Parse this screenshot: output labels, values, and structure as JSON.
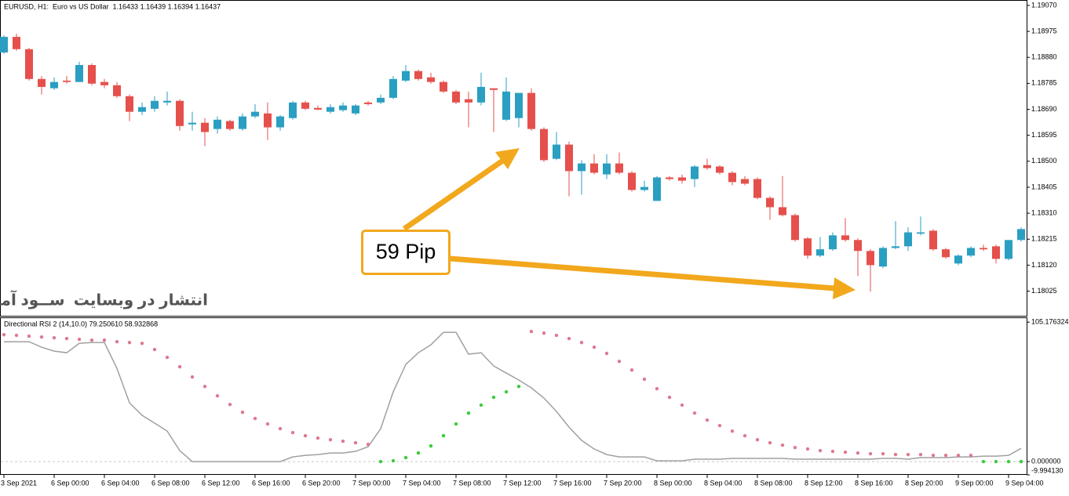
{
  "chart_data": [
    {
      "type": "candlestick",
      "title": "EURUSD, H1:  Euro vs US Dollar  1.16433 1.16439 1.16394 1.16437",
      "annotations": [
        "59 Pip",
        "انتشار در وبسایت  ســود آمــوز"
      ],
      "up_color": "#2a9fc2",
      "down_color": "#e5504c",
      "ylim": [
        1.17932,
        1.19087
      ],
      "yticks": [
        {
          "value": 1.1907,
          "label": "1.19070"
        },
        1.18975,
        {
          "value": 1.1888,
          "label": "1.18880"
        },
        1.18785,
        {
          "value": 1.1869,
          "label": "1.18690"
        },
        1.18595,
        {
          "value": 1.185,
          "label": "1.18500"
        },
        1.18405,
        {
          "value": 1.1831,
          "label": "1.18310"
        },
        1.18215,
        {
          "value": 1.1812,
          "label": "1.18120"
        },
        1.18025
      ],
      "open": [
        1.18898,
        1.18955,
        1.1891,
        1.18801,
        1.18767,
        1.18795,
        1.1879,
        1.18852,
        1.1879,
        1.18778,
        1.18738,
        1.18681,
        1.18692,
        1.18715,
        1.18721,
        1.18635,
        1.18641,
        1.18618,
        1.18647,
        1.18618,
        1.18664,
        1.18675,
        1.18624,
        1.18658,
        1.18715,
        1.18695,
        1.18681,
        1.18687,
        1.18675,
        1.18715,
        1.18715,
        1.18732,
        1.18795,
        1.1883,
        1.18807,
        1.1879,
        1.18755,
        1.18727,
        1.18715,
        1.18767,
        1.18652,
        1.18658,
        1.1875,
        1.18618,
        1.18509,
        1.18561,
        1.18464,
        1.18492,
        1.18452,
        1.18492,
        1.18458,
        1.18395,
        1.18355,
        1.18441,
        1.18441,
        1.18435,
        1.18486,
        1.18481,
        1.18458,
        1.18435,
        1.18435,
        1.18366,
        1.18332,
        1.18303,
        1.18218,
        1.18155,
        1.18178,
        1.18229,
        1.18212,
        1.18172,
        1.18115,
        1.18183,
        1.18189,
        1.18235,
        1.18246,
        1.18178,
        1.18126,
        1.18155,
        1.18183,
        1.18189,
        1.18143,
        1.18212
      ],
      "high": [
        1.18961,
        1.18967,
        1.18915,
        1.18812,
        1.18807,
        1.18812,
        1.18864,
        1.18858,
        1.18801,
        1.1879,
        1.18744,
        1.18715,
        1.18738,
        1.18755,
        1.18727,
        1.18681,
        1.18658,
        1.18664,
        1.18652,
        1.18675,
        1.18709,
        1.18715,
        1.18669,
        1.18721,
        1.18721,
        1.18704,
        1.18709,
        1.18715,
        1.18709,
        1.18721,
        1.18744,
        1.18812,
        1.18852,
        1.18835,
        1.18824,
        1.18795,
        1.18761,
        1.18755,
        1.18824,
        1.18767,
        1.18807,
        1.1875,
        1.18767,
        1.18624,
        1.18607,
        1.18572,
        1.18504,
        1.18526,
        1.18526,
        1.18532,
        1.18464,
        1.18429,
        1.18446,
        1.18446,
        1.18452,
        1.18486,
        1.18509,
        1.18486,
        1.18464,
        1.18446,
        1.18441,
        1.18372,
        1.18446,
        1.18309,
        1.18223,
        1.18223,
        1.1824,
        1.18292,
        1.18218,
        1.18178,
        1.18189,
        1.18281,
        1.18258,
        1.18298,
        1.18252,
        1.18183,
        1.1816,
        1.18189,
        1.18195,
        1.18195,
        1.18212,
        1.18258
      ],
      "low": [
        1.18893,
        1.18904,
        1.18795,
        1.18744,
        1.18761,
        1.18784,
        1.1879,
        1.18778,
        1.18767,
        1.18732,
        1.18647,
        1.18669,
        1.18681,
        1.18704,
        1.18612,
        1.18612,
        1.18555,
        1.18601,
        1.18612,
        1.18612,
        1.18658,
        1.18578,
        1.18612,
        1.18652,
        1.18687,
        1.18687,
        1.18675,
        1.18681,
        1.18669,
        1.18704,
        1.18709,
        1.18727,
        1.1879,
        1.18795,
        1.18784,
        1.1875,
        1.18709,
        1.18624,
        1.18704,
        1.18607,
        1.18647,
        1.18624,
        1.18612,
        1.18498,
        1.18504,
        1.18372,
        1.18378,
        1.18452,
        1.18435,
        1.18452,
        1.18389,
        1.18389,
        1.18355,
        1.18429,
        1.18418,
        1.18406,
        1.18469,
        1.18452,
        1.18412,
        1.18412,
        1.18361,
        1.18286,
        1.18298,
        1.18206,
        1.18143,
        1.18149,
        1.18172,
        1.18206,
        1.1808,
        1.18023,
        1.18109,
        1.18178,
        1.18172,
        1.18229,
        1.18172,
        1.18143,
        1.1812,
        1.18149,
        1.18172,
        1.18126,
        1.18138,
        1.18206
      ],
      "close": [
        1.18955,
        1.1891,
        1.18801,
        1.18772,
        1.1879,
        1.1879,
        1.18852,
        1.18784,
        1.18778,
        1.18738,
        1.18681,
        1.18698,
        1.18721,
        1.18721,
        1.18629,
        1.18641,
        1.18607,
        1.18652,
        1.18618,
        1.18664,
        1.18681,
        1.18624,
        1.18664,
        1.18715,
        1.18692,
        1.18689,
        1.18698,
        1.18704,
        1.18704,
        1.18709,
        1.18732,
        1.18801,
        1.1883,
        1.18801,
        1.1879,
        1.18755,
        1.18715,
        1.18715,
        1.18772,
        1.18761,
        1.18755,
        1.1875,
        1.18618,
        1.18504,
        1.18561,
        1.18464,
        1.18492,
        1.18458,
        1.18492,
        1.18458,
        1.18395,
        1.18406,
        1.18441,
        1.18435,
        1.18429,
        1.18481,
        1.18475,
        1.18458,
        1.18424,
        1.18418,
        1.18366,
        1.18332,
        1.18303,
        1.18212,
        1.18155,
        1.18178,
        1.18229,
        1.18212,
        1.18172,
        1.1812,
        1.18183,
        1.18189,
        1.1824,
        1.1824,
        1.18178,
        1.18149,
        1.18155,
        1.18183,
        1.18178,
        1.18143,
        1.18212,
        1.18252
      ]
    },
    {
      "type": "line",
      "title": "Directional RSI 2 (14,10.0) 79.250610 58.932868",
      "ylim": [
        -10,
        108.2
      ],
      "yticks": [
        105.176324,
        {
          "value": 0,
          "label": "0.000000"
        },
        {
          "value": -9.99413,
          "label": "-9.994130"
        }
      ],
      "levels": [
        0
      ],
      "categories": [
        "3 Sep 2021",
        null,
        null,
        null,
        "6 Sep 00:00",
        null,
        null,
        null,
        "6 Sep 04:00",
        null,
        null,
        null,
        "6 Sep 08:00",
        null,
        null,
        null,
        "6 Sep 12:00",
        null,
        null,
        null,
        "6 Sep 16:00",
        null,
        null,
        null,
        "6 Sep 20:00",
        null,
        null,
        null,
        "7 Sep 00:00",
        null,
        null,
        null,
        "7 Sep 04:00",
        null,
        null,
        null,
        "7 Sep 08:00",
        null,
        null,
        null,
        "7 Sep 12:00",
        null,
        null,
        null,
        "7 Sep 16:00",
        null,
        null,
        null,
        "7 Sep 20:00",
        null,
        null,
        null,
        "8 Sep 00:00",
        null,
        null,
        null,
        "8 Sep 04:00",
        null,
        null,
        null,
        "8 Sep 08:00",
        null,
        null,
        null,
        "8 Sep 12:00",
        null,
        null,
        null,
        "8 Sep 16:00",
        null,
        null,
        null,
        "8 Sep 20:00",
        null,
        null,
        null,
        "9 Sep 00:00",
        null,
        null,
        null,
        "9 Sep 04:00",
        null
      ],
      "series": [
        {
          "color": "#a0a0a0",
          "style": "line",
          "values": [
            90.4,
            90.4,
            90.4,
            86.3,
            83.3,
            82.1,
            89.2,
            89.8,
            89.8,
            70.3,
            44.3,
            34.9,
            29,
            23,
            8.3,
            0,
            0,
            0,
            0,
            0,
            0,
            0,
            0,
            3.5,
            4.7,
            5.3,
            6.5,
            6.5,
            7.7,
            11.2,
            24.8,
            52.6,
            73.3,
            82.1,
            88.1,
            97.5,
            97.5,
            81,
            82.1,
            72.1,
            66.8,
            61.5,
            55.6,
            47.9,
            37.8,
            26,
            16,
            9.5,
            5.3,
            3.5,
            3.5,
            3.5,
            0.6,
            0.6,
            0.6,
            1.8,
            1.8,
            1.8,
            2.4,
            2.4,
            2.4,
            2.4,
            2.4,
            1.8,
            1.8,
            1.8,
            1.8,
            1.8,
            1.8,
            1.8,
            2.4,
            2.4,
            1.8,
            3,
            3,
            3,
            3.5,
            3.5,
            4.1,
            4.1,
            4.7,
            10
          ]
        },
        {
          "color": "#de7a90",
          "style": "dots",
          "values": [
            95.7,
            95.2,
            94.6,
            94,
            93.4,
            92.8,
            92.2,
            91.6,
            91.6,
            90.4,
            89.8,
            89.2,
            84.5,
            78.6,
            71.5,
            63.8,
            56.7,
            49.6,
            43.1,
            37.2,
            32.5,
            28.4,
            24.8,
            21.9,
            19.5,
            17.7,
            16.5,
            15.4,
            14.2,
            13,
            null,
            null,
            null,
            null,
            null,
            null,
            null,
            null,
            null,
            null,
            null,
            null,
            98.1,
            96.9,
            95.2,
            92.8,
            89.8,
            86.3,
            81.6,
            75.6,
            69.1,
            62.1,
            55,
            48.5,
            42.6,
            36.6,
            31.3,
            27.2,
            23,
            19.5,
            16.5,
            14.2,
            12.4,
            10.6,
            9.5,
            8.3,
            7.7,
            7.1,
            6.5,
            5.9,
            5.9,
            5.3,
            5.3,
            5.3,
            4.7,
            4.7,
            4.7,
            4.7,
            null,
            null,
            null,
            null
          ]
        },
        {
          "color": "#3ccc3c",
          "style": "dots",
          "values": [
            null,
            null,
            null,
            null,
            null,
            null,
            null,
            null,
            null,
            null,
            null,
            null,
            null,
            null,
            null,
            null,
            null,
            null,
            null,
            null,
            null,
            null,
            null,
            null,
            null,
            null,
            null,
            null,
            null,
            null,
            0,
            0.6,
            3,
            6.5,
            11.8,
            19.5,
            28.4,
            36.6,
            42.6,
            48.5,
            52.6,
            56.7,
            null,
            null,
            null,
            null,
            null,
            null,
            null,
            null,
            null,
            null,
            null,
            null,
            null,
            null,
            null,
            null,
            null,
            null,
            null,
            null,
            null,
            null,
            null,
            null,
            null,
            null,
            null,
            null,
            null,
            null,
            null,
            null,
            null,
            null,
            null,
            null,
            0,
            0,
            0,
            0
          ]
        }
      ]
    }
  ]
}
